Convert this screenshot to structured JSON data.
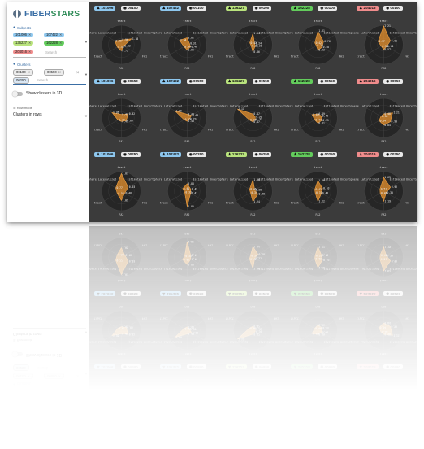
{
  "app": {
    "brand_part1": "FIBER",
    "brand_part2": "STARS"
  },
  "sidebar": {
    "subjects_label": "Subjects",
    "subject_chips": [
      {
        "label": "101006",
        "color": "#8ec7ee"
      },
      {
        "label": "107422",
        "color": "#8ec7ee"
      },
      {
        "label": "136227",
        "color": "#b9e37d"
      },
      {
        "label": "162228",
        "color": "#63cc5c"
      },
      {
        "label": "204016",
        "color": "#f08c8c"
      }
    ],
    "subjects_placeholder": "Search",
    "clusters_label": "Clusters",
    "cluster_chips": [
      {
        "label": "00100"
      },
      {
        "label": "00550"
      },
      {
        "label": "00250"
      }
    ],
    "clusters_placeholder": "Search",
    "toggle_label": "Show clusters in 3D",
    "rowmode_label": "Row mode",
    "rowmode_value": "Clusters in rows"
  },
  "axes": [
    "tract",
    "Estimated Uncertainty",
    "FA1",
    "FA2",
    "tract",
    "Hemisphere Lateralized"
  ],
  "grid_rows": [
    {
      "cluster": "00100",
      "values": [
        [
          "0.56",
          "1.38",
          "0.32",
          "0.72",
          "0.56",
          "0.89"
        ],
        [
          "0.82",
          "0.31",
          "0.46",
          "0.62",
          "0.44",
          "1.04"
        ],
        [
          "1.34",
          "0.24",
          "0.31",
          "0.86",
          "0.24",
          "0.43"
        ],
        [
          "1.61",
          "0.76",
          "0.58",
          "0.63",
          "0.22",
          "0.42"
        ],
        [
          "2.21",
          "0.91",
          "0.40",
          "0.57",
          "0.34",
          "0.77"
        ]
      ]
    },
    {
      "cluster": "00550",
      "values": [
        [
          "0.41",
          "0.92",
          "0.66",
          "0.41",
          "0.47",
          "1.26"
        ],
        [
          "0.44",
          "0.60",
          "0.29",
          "0.40",
          "0.42",
          "1.66"
        ],
        [
          "0.47",
          "0.30",
          "0.33",
          "0.47",
          "0.48",
          "2.11"
        ],
        [
          "0.49",
          "0.48",
          "0.55",
          "0.61",
          "0.44",
          "0.80"
        ],
        [
          "0.48",
          "1.21",
          "0.90",
          "0.84",
          "0.64",
          "0.38"
        ]
      ]
    },
    {
      "cluster": "00250",
      "values": [
        [
          "2.07",
          "0.93",
          "0.46",
          "1.09",
          "0.56",
          "0.77"
        ],
        [
          "0.88",
          "0.49",
          "0.47",
          "1.82",
          "0.33",
          "0.61"
        ],
        [
          "1.36",
          "0.25",
          "0.68",
          "1.24",
          "0.34",
          "0.46"
        ],
        [
          "1.26",
          "0.63",
          "0.48",
          "1.22",
          "0.37",
          "0.43"
        ],
        [
          "1.63",
          "0.92",
          "0.35",
          "1.19",
          "0.48",
          "0.51"
        ]
      ]
    }
  ],
  "colors": {
    "accent": "#3a6ea5",
    "radar_fill": "#e8912e",
    "tile_bg": "#3b3b3b"
  },
  "icons": [
    "person-icon",
    "cluster-icon",
    "subjects-icon",
    "clusters-icon",
    "rows-icon",
    "close-icon",
    "chevron-down-icon"
  ]
}
